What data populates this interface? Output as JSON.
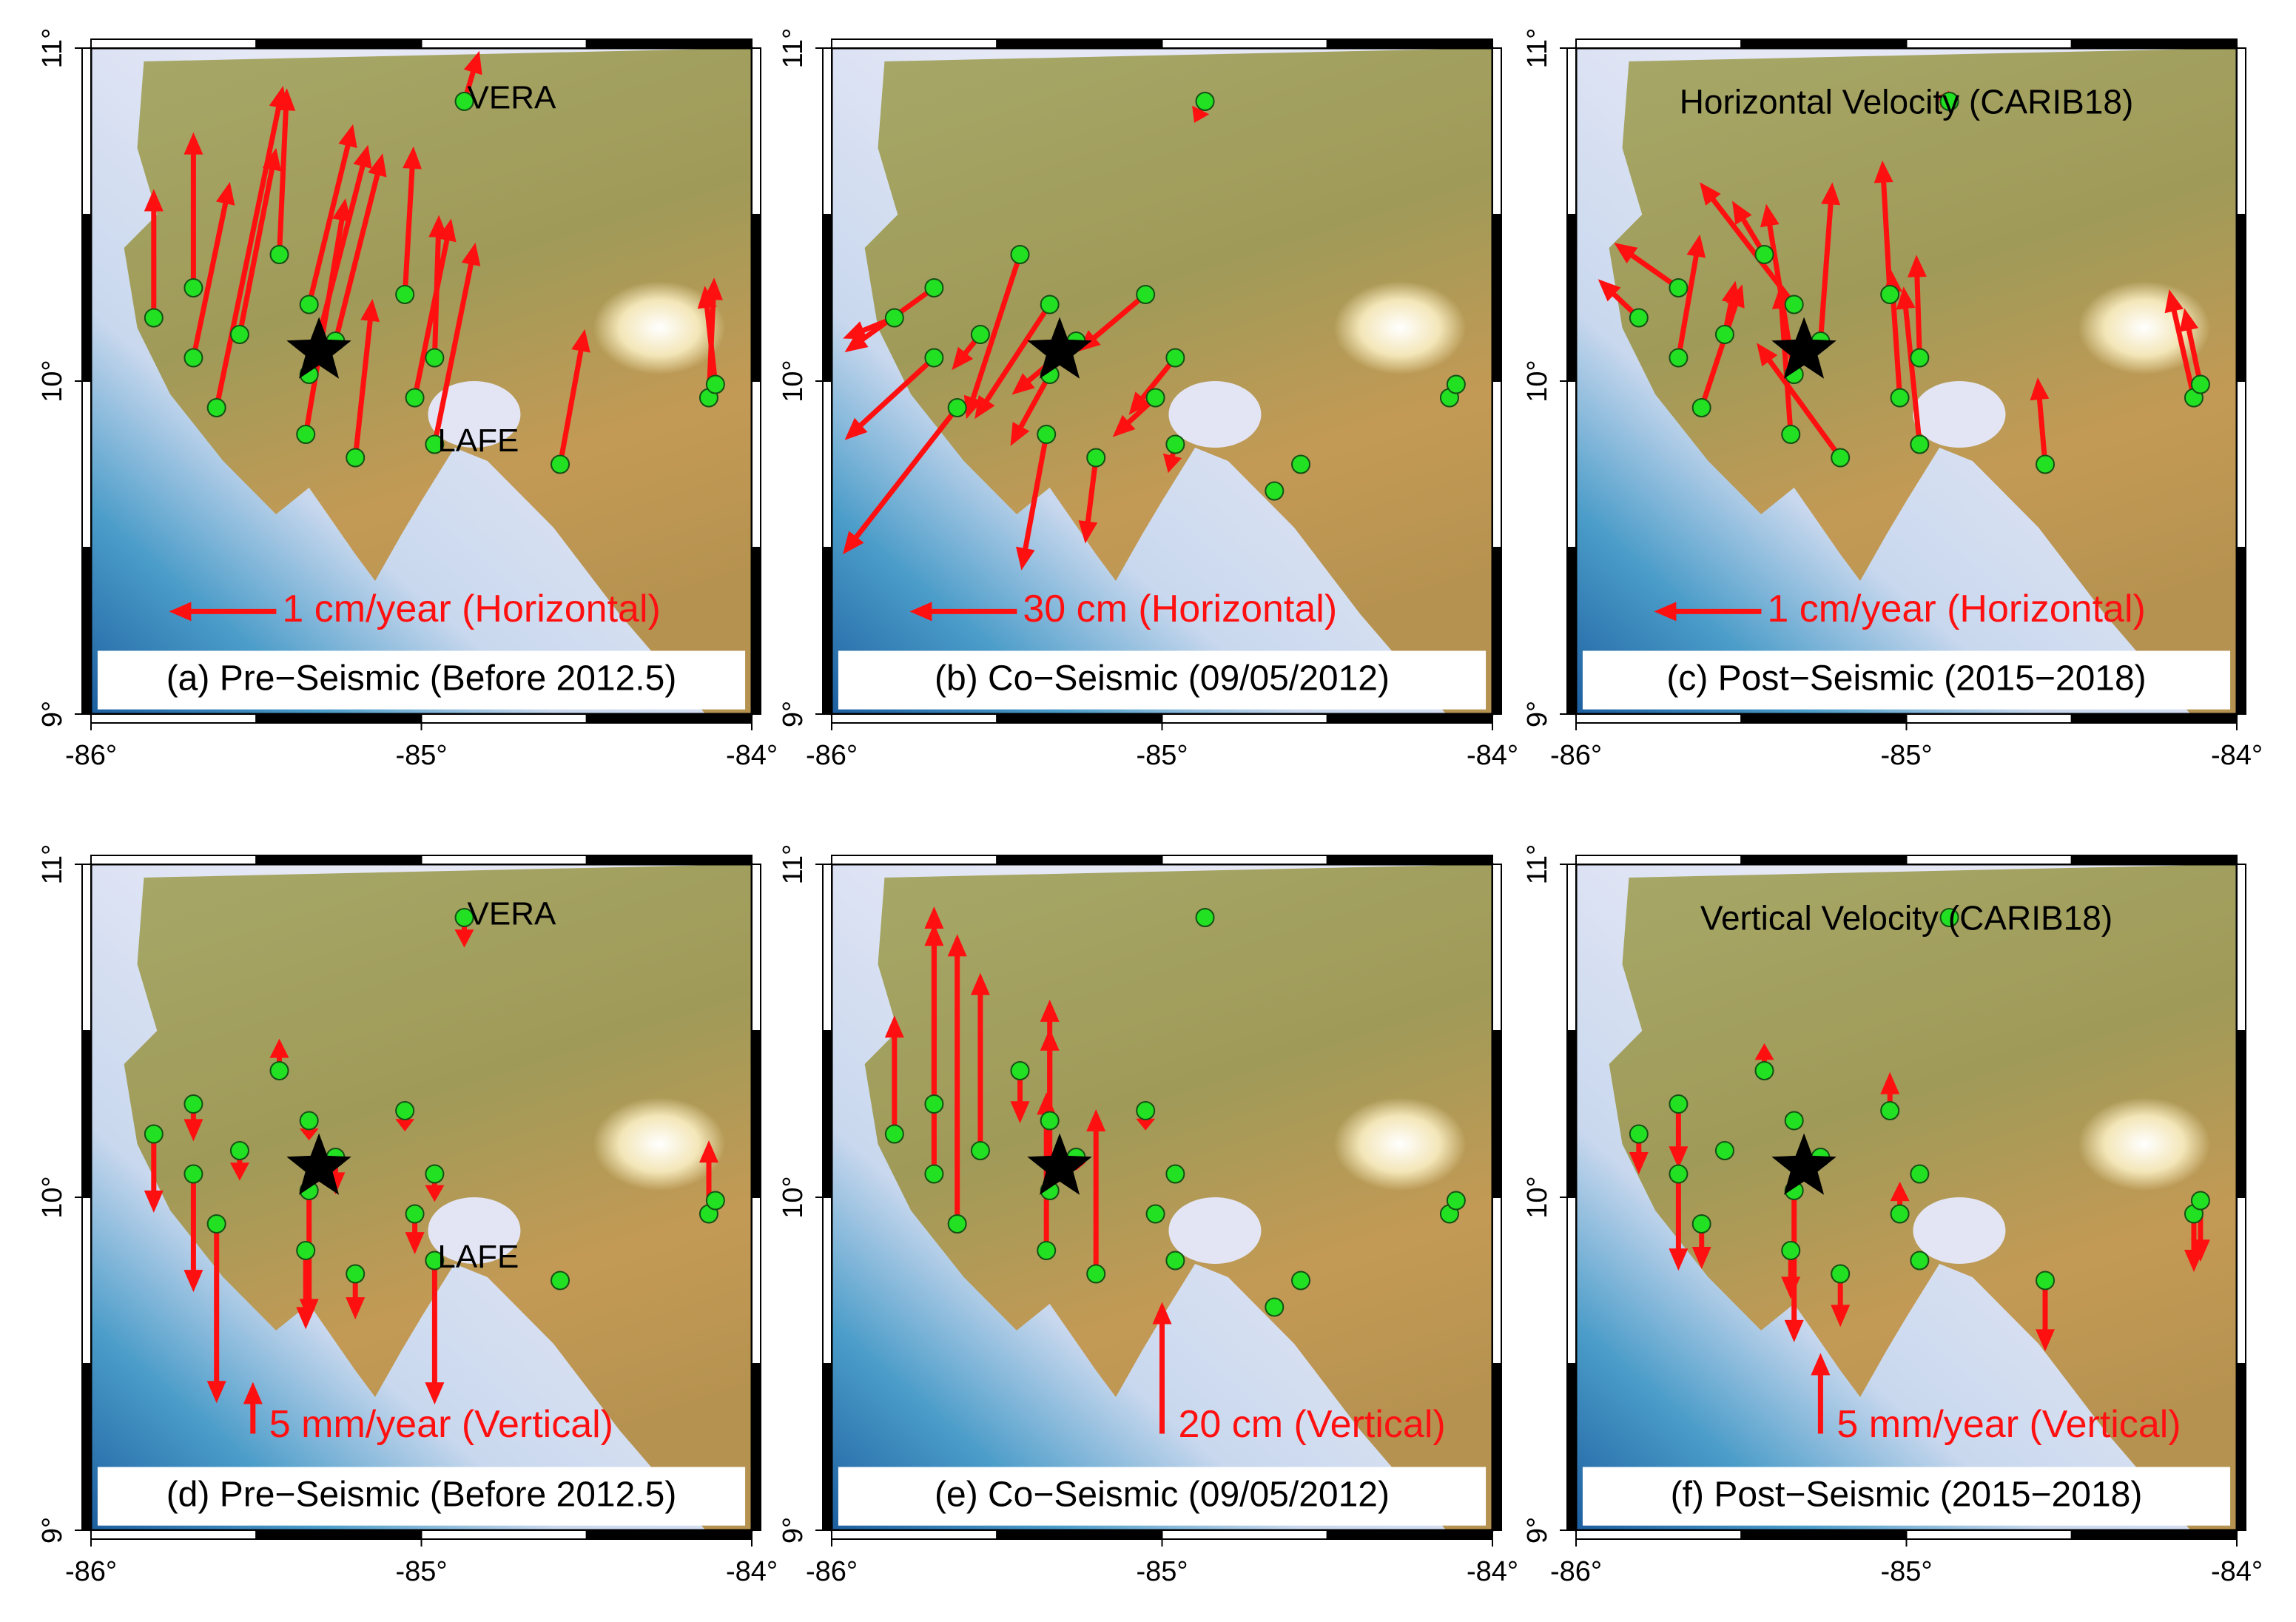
{
  "xlim": [
    -86,
    -84
  ],
  "ylim": [
    9,
    11
  ],
  "xticks": [
    {
      "value": -86,
      "label": "-86°"
    },
    {
      "value": -85,
      "label": "-85°"
    },
    {
      "value": -84,
      "label": "-84°"
    }
  ],
  "yticks": [
    {
      "value": 9,
      "label": "9°"
    },
    {
      "value": 10,
      "label": "10°"
    },
    {
      "value": 11,
      "label": "11°"
    }
  ],
  "epicenter": [
    -85.31,
    10.09
  ],
  "stations": [
    {
      "lon": -85.81,
      "lat": 10.19
    },
    {
      "lon": -85.69,
      "lat": 10.28
    },
    {
      "lon": -85.69,
      "lat": 10.07
    },
    {
      "lon": -85.62,
      "lat": 9.92
    },
    {
      "lon": -85.55,
      "lat": 10.14
    },
    {
      "lon": -85.43,
      "lat": 10.38
    },
    {
      "lon": -85.34,
      "lat": 10.23
    },
    {
      "lon": -85.34,
      "lat": 10.02
    },
    {
      "lon": -85.35,
      "lat": 9.84
    },
    {
      "lon": -85.26,
      "lat": 10.12
    },
    {
      "lon": -85.2,
      "lat": 9.77
    },
    {
      "lon": -85.05,
      "lat": 10.26
    },
    {
      "lon": -85.02,
      "lat": 9.95
    },
    {
      "lon": -84.96,
      "lat": 10.07
    },
    {
      "lon": -84.96,
      "lat": 9.81,
      "name": "LAFE"
    },
    {
      "lon": -84.58,
      "lat": 9.75
    },
    {
      "lon": -84.13,
      "lat": 9.95
    },
    {
      "lon": -84.11,
      "lat": 9.99
    },
    {
      "lon": -84.87,
      "lat": 10.84,
      "name": "VERA"
    },
    {
      "lon": -84.66,
      "lat": 9.67
    }
  ],
  "panels": [
    {
      "label": "(a) Pre−Seismic (Before 2012.5)",
      "component": "horizontal",
      "show_names": true,
      "scale": {
        "value": 1,
        "label": "1 cm/year (Horizontal)"
      },
      "vectors": [
        [
          0,
          1.2
        ],
        [
          0,
          1.45
        ],
        [
          0.34,
          1.64
        ],
        [
          0.62,
          3.0
        ],
        [
          0.34,
          1.74
        ],
        [
          0.07,
          1.55
        ],
        [
          0.41,
          1.68
        ],
        [
          0.55,
          2.14
        ],
        [
          0.37,
          2.2
        ],
        [
          0.44,
          1.75
        ],
        [
          0.16,
          1.48
        ],
        [
          0.08,
          1.38
        ],
        [
          0.34,
          1.67
        ],
        [
          0.04,
          1.33
        ],
        [
          0.38,
          1.88
        ],
        [
          0.23,
          1.26
        ],
        [
          0.05,
          1.12
        ],
        [
          -0.1,
          0.92
        ],
        [
          0.14,
          0.47
        ],
        null
      ]
    },
    {
      "label": "(b) Co−Seismic (09/05/2012)",
      "component": "horizontal",
      "show_names": false,
      "scale": {
        "value": 30,
        "label": "30 cm (Horizontal)"
      },
      "vectors": [
        [
          -14.4,
          -5.8
        ],
        [
          -25,
          -18
        ],
        [
          -25,
          -23
        ],
        [
          -32,
          -41
        ],
        [
          -8,
          -10
        ],
        [
          -15,
          -46
        ],
        [
          -21,
          -32
        ],
        [
          -11,
          -20
        ],
        [
          -7,
          -38
        ],
        [
          -18,
          -15
        ],
        [
          -3,
          -24
        ],
        [
          -19,
          -16
        ],
        [
          -12,
          -11
        ],
        [
          -13,
          -16
        ],
        [
          -2,
          -8
        ],
        [
          0,
          0
        ],
        [
          0,
          0
        ],
        [
          0,
          0
        ],
        [
          -3,
          -6
        ],
        [
          0,
          0
        ]
      ]
    },
    {
      "label": "(c) Post−Seismic (2015−2018)",
      "component": "horizontal",
      "show_names": false,
      "title": "Horizontal Velocity (CARIB18)",
      "scale": {
        "value": 1,
        "label": "1 cm/year (Horizontal)"
      },
      "vectors": [
        [
          -0.38,
          0.36
        ],
        [
          -0.6,
          0.42
        ],
        [
          0.2,
          1.15
        ],
        [
          0.38,
          1.15
        ],
        [
          0.1,
          0.5
        ],
        [
          -0.3,
          0.5
        ],
        [
          -0.88,
          1.14
        ],
        [
          -0.26,
          1.59
        ],
        [
          -0.1,
          1.38
        ],
        [
          0.11,
          1.48
        ],
        [
          -0.78,
          1.07
        ],
        [
          -0.07,
          1.25
        ],
        [
          -0.08,
          1.19
        ],
        [
          -0.03,
          0.96
        ],
        [
          -0.15,
          1.47
        ],
        [
          -0.07,
          0.81
        ],
        [
          -0.23,
          1.01
        ],
        [
          -0.15,
          0.71
        ],
        [
          -0.1,
          0.05
        ],
        null
      ]
    },
    {
      "label": "(d) Pre−Seismic (Before 2012.5)",
      "component": "vertical",
      "show_names": true,
      "scale": {
        "value": 5,
        "label": "5 mm/year (Vertical)"
      },
      "vectors": [
        -7.6,
        -3.6,
        -11.4,
        -17.3,
        -2.9,
        3.1,
        -1.9,
        -12.6,
        -7.6,
        -3.6,
        -4.4,
        -2,
        -3.9,
        -2.7,
        -13.9,
        0,
        7.1,
        0,
        -2.9,
        null
      ]
    },
    {
      "label": "(e) Co−Seismic (09/05/2012)",
      "component": "vertical",
      "show_names": false,
      "scale": {
        "value": 20,
        "label": "20 cm (Vertical)"
      },
      "vectors": [
        18,
        30,
        38,
        44,
        27,
        -8,
        14,
        29,
        24,
        -2,
        25,
        -3,
        0,
        0,
        0,
        0,
        0,
        0,
        0,
        0
      ]
    },
    {
      "label": "(f) Post−Seismic (2015−2018)",
      "component": "vertical",
      "show_names": false,
      "title": "Vertical Velocity (CARIB18)",
      "scale": {
        "value": 5,
        "label": "5 mm/year (Vertical)"
      },
      "vectors": [
        -2.5,
        -4,
        -6,
        -2.8,
        0,
        1.7,
        0.6,
        -9.4,
        -3,
        0,
        -3.3,
        2.4,
        2,
        0,
        0,
        -4.4,
        -3.6,
        -3.8,
        0,
        null
      ]
    }
  ]
}
